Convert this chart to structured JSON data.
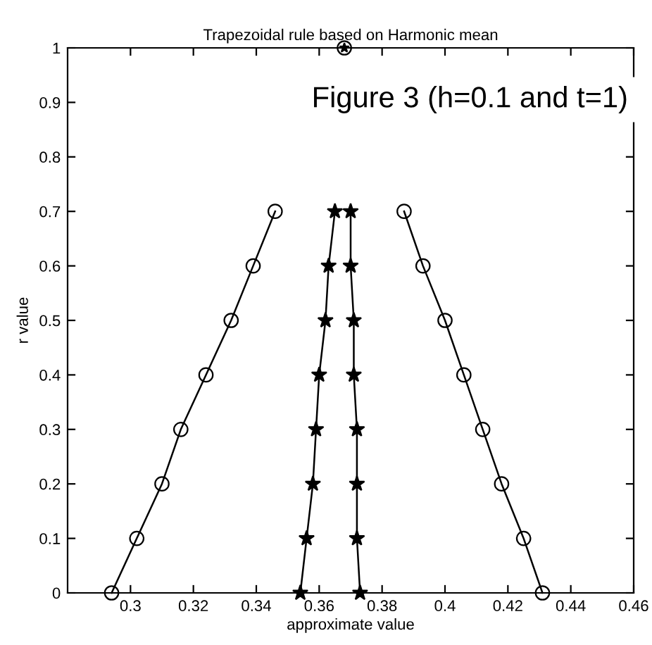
{
  "chart_data": {
    "type": "line",
    "title": "Trapezoidal rule based on Harmonic mean",
    "xlabel": "approximate value",
    "ylabel": "r value",
    "annotations": [
      "Figure 3 (h=0.1 and t=1)"
    ],
    "xlim": [
      0.28,
      0.46
    ],
    "xticks": [
      0.3,
      0.32,
      0.34,
      0.36,
      0.38,
      0.4,
      0.42,
      0.44,
      0.46
    ],
    "ylim": [
      0,
      1
    ],
    "yticks": [
      0,
      0.1,
      0.2,
      0.3,
      0.4,
      0.5,
      0.6,
      0.7,
      0.8,
      0.9,
      1
    ],
    "grid": false,
    "legend": false,
    "series": [
      {
        "color": "#000000",
        "marker": "circle",
        "x": [
          0.294,
          0.302,
          0.31,
          0.316,
          0.324,
          0.332,
          0.339,
          0.346
        ],
        "values": [
          0,
          0.1,
          0.2,
          0.3,
          0.4,
          0.5,
          0.6,
          0.7
        ]
      },
      {
        "color": "#000000",
        "marker": "star",
        "x": [
          0.354,
          0.356,
          0.358,
          0.359,
          0.36,
          0.362,
          0.363,
          0.365
        ],
        "values": [
          0,
          0.1,
          0.2,
          0.3,
          0.4,
          0.5,
          0.6,
          0.7
        ]
      },
      {
        "color": "#000000",
        "marker": "star",
        "x": [
          0.373,
          0.372,
          0.372,
          0.372,
          0.371,
          0.371,
          0.37,
          0.37
        ],
        "values": [
          0,
          0.1,
          0.2,
          0.3,
          0.4,
          0.5,
          0.6,
          0.7
        ]
      },
      {
        "color": "#000000",
        "marker": "circle",
        "x": [
          0.431,
          0.425,
          0.418,
          0.412,
          0.406,
          0.4,
          0.393,
          0.387
        ],
        "values": [
          0,
          0.1,
          0.2,
          0.3,
          0.4,
          0.5,
          0.6,
          0.7
        ]
      },
      {
        "type": "scatter",
        "color": "#000000",
        "marker": "circle",
        "x": [
          0.368
        ],
        "values": [
          1
        ]
      },
      {
        "type": "scatter",
        "color": "#000000",
        "marker": "star",
        "x": [
          0.368
        ],
        "values": [
          1
        ]
      }
    ]
  }
}
